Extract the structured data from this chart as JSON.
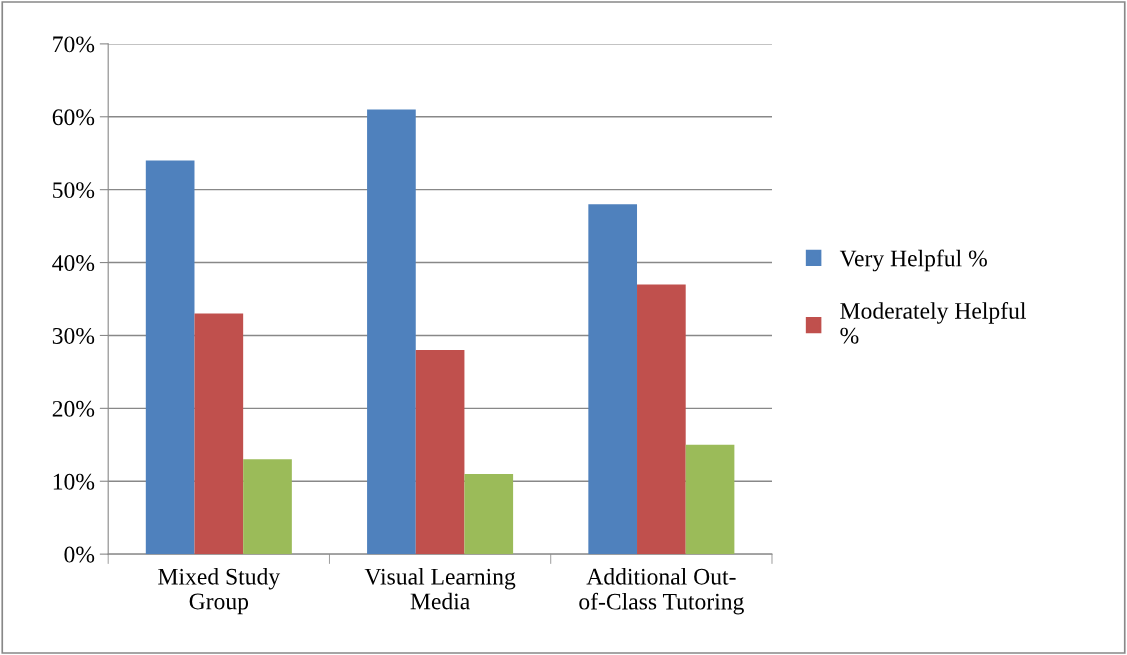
{
  "chart_data": {
    "type": "bar",
    "categories": [
      "Mixed Study\nGroup",
      "Visual Learning\nMedia",
      "Additional Out-\nof-Class Tutoring"
    ],
    "series": [
      {
        "name": "Very Helpful %",
        "color": "#4f81bd",
        "values": [
          54,
          61,
          48
        ]
      },
      {
        "name": "Moderately Helpful\n%",
        "color": "#c0504d",
        "values": [
          33,
          28,
          37
        ]
      },
      {
        "color": "#9bbb59",
        "values": [
          13,
          11,
          15
        ]
      }
    ],
    "ylim": [
      0,
      70
    ],
    "yticks": [
      {
        "value": 0,
        "label": "0%"
      },
      {
        "value": 10,
        "label": "10%"
      },
      {
        "value": 20,
        "label": "20%"
      },
      {
        "value": 30,
        "label": "30%"
      },
      {
        "value": 40,
        "label": "40%"
      },
      {
        "value": 50,
        "label": "50%"
      },
      {
        "value": 60,
        "label": "60%"
      },
      {
        "value": 70,
        "label": "70%"
      }
    ],
    "grid": "y",
    "legend": "right"
  }
}
